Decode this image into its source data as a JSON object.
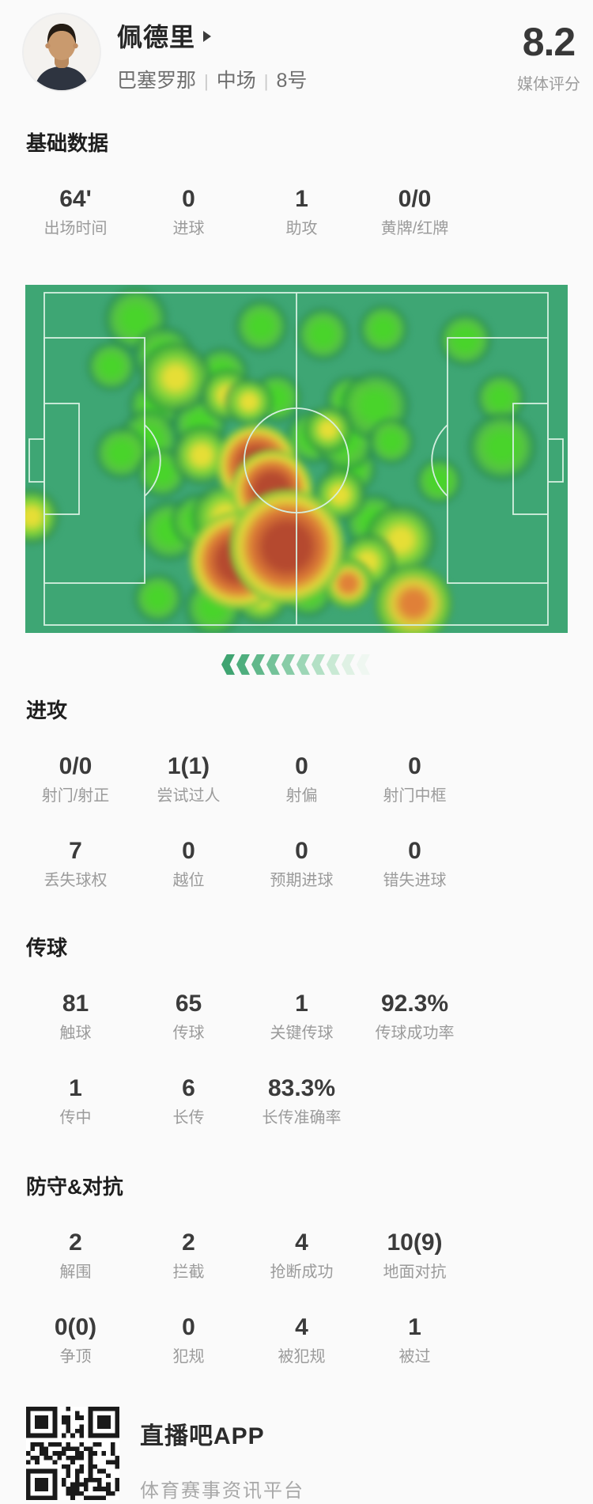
{
  "palette": {
    "field": "#3EA674",
    "line": "#d5efe0",
    "green_core": "#49d42b",
    "yellow_core": "#e6de36",
    "orange_core": "#e08038",
    "red_core": "#b5492f",
    "qr_dark": "#1a1a1a",
    "rating_text": "#383838"
  },
  "header": {
    "player_name": "佩德里",
    "name_arrow_icon": "triangle-right",
    "team": "巴塞罗那",
    "position": "中场",
    "number": "8号",
    "separator": "|",
    "rating": "8.2",
    "rating_label": "媒体评分"
  },
  "sections": [
    {
      "id": "basic",
      "title": "基础数据",
      "rows": [
        [
          {
            "value": "64'",
            "label": "出场时间"
          },
          {
            "value": "0",
            "label": "进球"
          },
          {
            "value": "1",
            "label": "助攻"
          },
          {
            "value": "0/0",
            "label": "黄牌/红牌"
          }
        ]
      ]
    },
    {
      "id": "attack",
      "title": "进攻",
      "rows": [
        [
          {
            "value": "0/0",
            "label": "射门/射正"
          },
          {
            "value": "1(1)",
            "label": "尝试过人"
          },
          {
            "value": "0",
            "label": "射偏"
          },
          {
            "value": "0",
            "label": "射门中框"
          }
        ],
        [
          {
            "value": "7",
            "label": "丢失球权"
          },
          {
            "value": "0",
            "label": "越位"
          },
          {
            "value": "0",
            "label": "预期进球"
          },
          {
            "value": "0",
            "label": "错失进球"
          }
        ]
      ]
    },
    {
      "id": "passing",
      "title": "传球",
      "rows": [
        [
          {
            "value": "81",
            "label": "触球"
          },
          {
            "value": "65",
            "label": "传球"
          },
          {
            "value": "1",
            "label": "关键传球"
          },
          {
            "value": "92.3%",
            "label": "传球成功率"
          }
        ],
        [
          {
            "value": "1",
            "label": "传中"
          },
          {
            "value": "6",
            "label": "长传"
          },
          {
            "value": "83.3%",
            "label": "长传准确率"
          }
        ]
      ]
    },
    {
      "id": "defense",
      "title": "防守&对抗",
      "rows": [
        [
          {
            "value": "2",
            "label": "解围"
          },
          {
            "value": "2",
            "label": "拦截"
          },
          {
            "value": "4",
            "label": "抢断成功"
          },
          {
            "value": "10(9)",
            "label": "地面对抗"
          }
        ],
        [
          {
            "value": "0(0)",
            "label": "争顶"
          },
          {
            "value": "0",
            "label": "犯规"
          },
          {
            "value": "4",
            "label": "被犯规"
          },
          {
            "value": "1",
            "label": "被过"
          }
        ]
      ]
    }
  ],
  "heatmap": {
    "pitch_width": 686,
    "pitch_height": 440,
    "attack_direction": "left",
    "blobs": {
      "g": [
        [
          140,
          44,
          18
        ],
        [
          175,
          90,
          17
        ],
        [
          109,
          103,
          14
        ],
        [
          164,
          153,
          15
        ],
        [
          156,
          196,
          17
        ],
        [
          121,
          213,
          15
        ],
        [
          220,
          176,
          15
        ],
        [
          173,
          238,
          14
        ],
        [
          183,
          311,
          17
        ],
        [
          218,
          298,
          15
        ],
        [
          238,
          408,
          16
        ],
        [
          168,
          396,
          14
        ],
        [
          248,
          113,
          15
        ],
        [
          298,
          53,
          15
        ],
        [
          376,
          63,
          15
        ],
        [
          318,
          143,
          14
        ],
        [
          363,
          193,
          15
        ],
        [
          413,
          233,
          14
        ],
        [
          411,
          146,
          14
        ],
        [
          405,
          196,
          17
        ],
        [
          453,
          56,
          14
        ],
        [
          556,
          70,
          15
        ],
        [
          601,
          143,
          14
        ],
        [
          603,
          205,
          19
        ],
        [
          440,
          300,
          16
        ],
        [
          443,
          153,
          19
        ],
        [
          463,
          198,
          13
        ],
        [
          523,
          248,
          13
        ],
        [
          358,
          388,
          14
        ]
      ],
      "y": [
        [
          190,
          118,
          19
        ],
        [
          255,
          140,
          14
        ],
        [
          223,
          216,
          16
        ],
        [
          283,
          148,
          13
        ],
        [
          383,
          183,
          13
        ],
        [
          8,
          293,
          15
        ],
        [
          298,
          393,
          15
        ],
        [
          253,
          293,
          18
        ],
        [
          398,
          266,
          14
        ],
        [
          300,
          320,
          16
        ],
        [
          475,
          323,
          19
        ],
        [
          433,
          350,
          15
        ]
      ],
      "o": [
        [
          491,
          403,
          20
        ],
        [
          408,
          378,
          13
        ]
      ],
      "r": [
        [
          293,
          228,
          20
        ],
        [
          312,
          260,
          20
        ],
        [
          269,
          349,
          24
        ],
        [
          331,
          331,
          28
        ]
      ]
    },
    "chevron_colors": [
      "#3fa471",
      "#4fae7e",
      "#61b88b",
      "#74c299",
      "#88cca7",
      "#9dd6b6",
      "#b3e0c5",
      "#c9e9d4",
      "#dff1e4",
      "#eff7f1"
    ]
  },
  "footer": {
    "app_name": "直播吧APP",
    "tagline": "体育赛事资讯平台",
    "qr_icon": "qr-code"
  }
}
